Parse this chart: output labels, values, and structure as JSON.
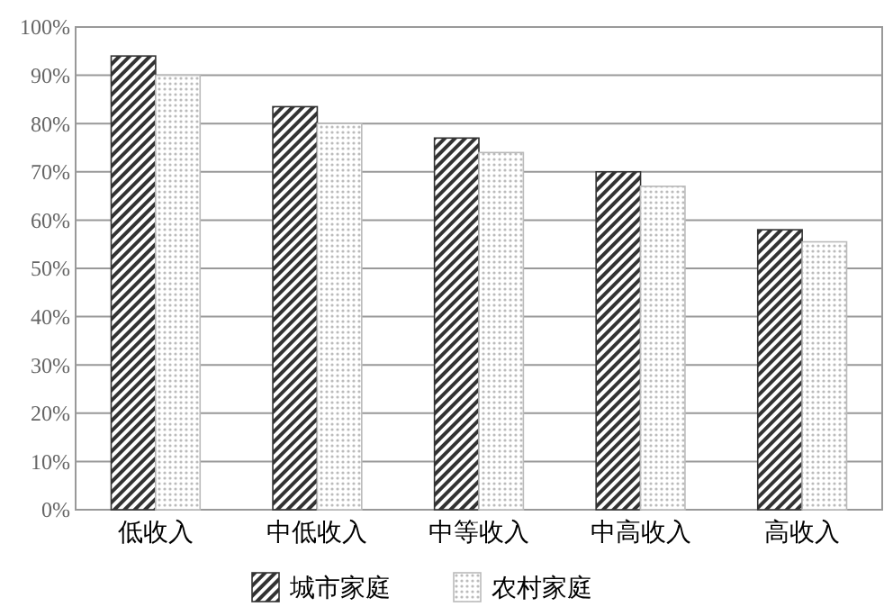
{
  "chart_data": {
    "type": "bar",
    "categories": [
      "低收入",
      "中低收入",
      "中等收入",
      "中高收入",
      "高收入"
    ],
    "series": [
      {
        "name": "城市家庭",
        "color": "#333333",
        "values": [
          94,
          83.5,
          77,
          70,
          58
        ]
      },
      {
        "name": "农村家庭",
        "color": "#bbbbbb",
        "values": [
          90,
          80,
          74,
          67,
          55.5
        ]
      }
    ],
    "ylim": [
      0,
      100
    ],
    "yticks": [
      {
        "value": 0,
        "label": "0%"
      },
      {
        "value": 10,
        "label": "10%"
      },
      {
        "value": 20,
        "label": "20%"
      },
      {
        "value": 30,
        "label": "30%"
      },
      {
        "value": 40,
        "label": "40%"
      },
      {
        "value": 50,
        "label": "50%"
      },
      {
        "value": 60,
        "label": "60%"
      },
      {
        "value": 70,
        "label": "70%"
      },
      {
        "value": 80,
        "label": "80%"
      },
      {
        "value": 90,
        "label": "90%"
      },
      {
        "value": 100,
        "label": "100%"
      }
    ],
    "grid": "y",
    "legend": "bottom"
  }
}
